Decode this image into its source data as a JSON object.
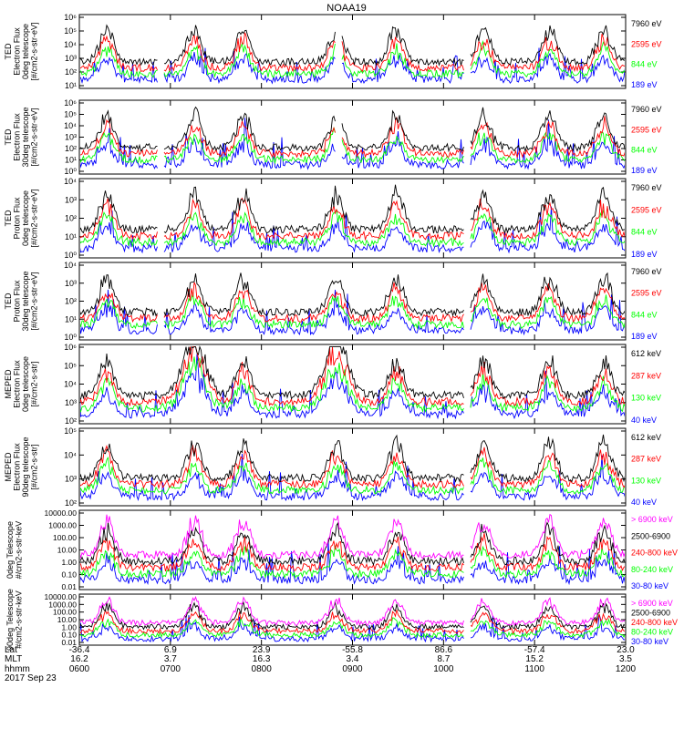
{
  "title": "NOAA19",
  "colors": {
    "black": "#000000",
    "red": "#ff0000",
    "green": "#00ff00",
    "blue": "#0000ff",
    "magenta": "#ff00ff"
  },
  "footer": {
    "row_labels": [
      "Lat",
      "MLT",
      "hhmm",
      "2017 Sep 23"
    ],
    "columns": [
      {
        "lat": "-36.4",
        "mlt": "16.2",
        "hhmm": "0600"
      },
      {
        "lat": "6.9",
        "mlt": "3.7",
        "hhmm": "0700"
      },
      {
        "lat": "23.9",
        "mlt": "16.3",
        "hhmm": "0800"
      },
      {
        "lat": "-55.8",
        "mlt": "3.4",
        "hhmm": "0900"
      },
      {
        "lat": "86.6",
        "mlt": "8.7",
        "hhmm": "1000"
      },
      {
        "lat": "-57.4",
        "mlt": "15.2",
        "hhmm": "1100"
      },
      {
        "lat": "23.0",
        "mlt": "3.5",
        "hhmm": "1200"
      }
    ]
  },
  "chart_data": [
    {
      "type": "line",
      "x_unit": "UT hhmm",
      "xlim": [
        "0600",
        "1200"
      ],
      "yscale": "log",
      "ylabel_lines": [
        "TED",
        "Electron Flux",
        "0deg telescope",
        "[#/cm2-s-str-eV]"
      ],
      "yticks": [
        "10¹",
        "10²",
        "10³",
        "10⁴",
        "10⁵",
        "10⁶"
      ],
      "series": [
        {
          "name": "7960 eV",
          "color": "#000000"
        },
        {
          "name": "2595 eV",
          "color": "#ff0000"
        },
        {
          "name": "844 eV",
          "color": "#00ff00"
        },
        {
          "name": "189 eV",
          "color": "#0000ff"
        }
      ]
    },
    {
      "type": "line",
      "x_unit": "UT hhmm",
      "xlim": [
        "0600",
        "1200"
      ],
      "yscale": "log",
      "ylabel_lines": [
        "TED",
        "Electron Flux",
        "30deg telescope",
        "[#/cm2-s-str-eV]"
      ],
      "yticks": [
        "10⁰",
        "10¹",
        "10²",
        "10³",
        "10⁴",
        "10⁵",
        "10⁶"
      ],
      "series": [
        {
          "name": "7960 eV",
          "color": "#000000"
        },
        {
          "name": "2595 eV",
          "color": "#ff0000"
        },
        {
          "name": "844 eV",
          "color": "#00ff00"
        },
        {
          "name": "189 eV",
          "color": "#0000ff"
        }
      ]
    },
    {
      "type": "line",
      "x_unit": "UT hhmm",
      "xlim": [
        "0600",
        "1200"
      ],
      "yscale": "log",
      "ylabel_lines": [
        "TED",
        "Proton Flux",
        "0deg telescope",
        "[#/cm2-s-str-eV]"
      ],
      "yticks": [
        "10⁰",
        "10¹",
        "10²",
        "10³",
        "10⁴"
      ],
      "series": [
        {
          "name": "7960 eV",
          "color": "#000000"
        },
        {
          "name": "2595 eV",
          "color": "#ff0000"
        },
        {
          "name": "844 eV",
          "color": "#00ff00"
        },
        {
          "name": "189 eV",
          "color": "#0000ff"
        }
      ]
    },
    {
      "type": "line",
      "x_unit": "UT hhmm",
      "xlim": [
        "0600",
        "1200"
      ],
      "yscale": "log",
      "ylabel_lines": [
        "TED",
        "Proton Flux",
        "30deg telescope",
        "[#/cm2-s-str-eV]"
      ],
      "yticks": [
        "10⁰",
        "10¹",
        "10²",
        "10³",
        "10⁴"
      ],
      "series": [
        {
          "name": "7960 eV",
          "color": "#000000"
        },
        {
          "name": "2595 eV",
          "color": "#ff0000"
        },
        {
          "name": "844 eV",
          "color": "#00ff00"
        },
        {
          "name": "189 eV",
          "color": "#0000ff"
        }
      ]
    },
    {
      "type": "line",
      "x_unit": "UT hhmm",
      "xlim": [
        "0600",
        "1200"
      ],
      "yscale": "log",
      "ylabel_lines": [
        "MEPED",
        "Electron Flux",
        "0deg telescope",
        "[#/cm2-s-str]"
      ],
      "yticks": [
        "10²",
        "10³",
        "10⁴",
        "10⁵",
        "10⁶"
      ],
      "series": [
        {
          "name": "612 keV",
          "color": "#000000"
        },
        {
          "name": "287 keV",
          "color": "#ff0000"
        },
        {
          "name": "130 keV",
          "color": "#00ff00"
        },
        {
          "name": "40 keV",
          "color": "#0000ff"
        }
      ]
    },
    {
      "type": "line",
      "x_unit": "UT hhmm",
      "xlim": [
        "0600",
        "1200"
      ],
      "yscale": "log",
      "ylabel_lines": [
        "MEPED",
        "Electron Flux",
        "90deg telescope",
        "[#/cm2-s-str]"
      ],
      "yticks": [
        "10²",
        "10³",
        "10⁴",
        "10⁵"
      ],
      "series": [
        {
          "name": "612 keV",
          "color": "#000000"
        },
        {
          "name": "287 keV",
          "color": "#ff0000"
        },
        {
          "name": "130 keV",
          "color": "#00ff00"
        },
        {
          "name": "40 keV",
          "color": "#0000ff"
        }
      ]
    },
    {
      "type": "line",
      "x_unit": "UT hhmm",
      "xlim": [
        "0600",
        "1200"
      ],
      "yscale": "log",
      "ylabel_lines": [
        "0deg Telescope",
        "#/cm2-s-str-keV"
      ],
      "yticks": [
        "0.01",
        "0.10",
        "1.00",
        "10.00",
        "100.00",
        "1000.00",
        "10000.00"
      ],
      "series": [
        {
          "name": "> 6900 keV",
          "color": "#ff00ff"
        },
        {
          "name": "2500-6900",
          "color": "#000000"
        },
        {
          "name": "240-800 keV",
          "color": "#ff0000"
        },
        {
          "name": "80-240 keV",
          "color": "#00ff00"
        },
        {
          "name": "30-80 keV",
          "color": "#0000ff"
        }
      ]
    },
    {
      "type": "line",
      "x_unit": "UT hhmm",
      "xlim": [
        "0600",
        "1200"
      ],
      "yscale": "log",
      "ylabel_lines": [
        "90deg Telescope",
        "#/cm2-s-str-keV"
      ],
      "yticks": [
        "0.01",
        "0.10",
        "1.00",
        "10.00",
        "100.00",
        "1000.00",
        "10000.00"
      ],
      "series": [
        {
          "name": "> 6900 keV",
          "color": "#ff00ff"
        },
        {
          "name": "2500-6900",
          "color": "#000000"
        },
        {
          "name": "240-800 keV",
          "color": "#ff0000"
        },
        {
          "name": "80-240 keV",
          "color": "#00ff00"
        },
        {
          "name": "30-80 keV",
          "color": "#0000ff"
        }
      ]
    }
  ]
}
